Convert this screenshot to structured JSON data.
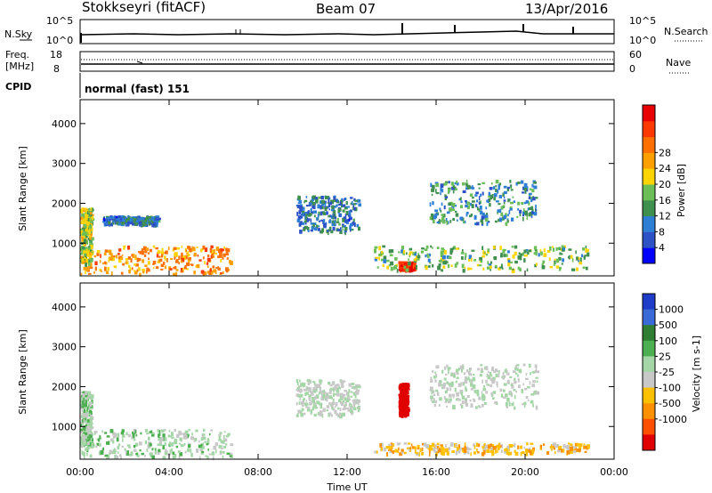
{
  "header": {
    "station": "Stokkseyri (fitACF)",
    "beam": "Beam 07",
    "date": "13/Apr/2016"
  },
  "strip_labels": {
    "nsky": "N.Sky",
    "nsearch": "N.Search",
    "noise_tick_top": "10^5",
    "noise_tick_bottom": "10^0",
    "freq_line1": "Freq.",
    "freq_line2": "[MHz]",
    "freq_ticks": [
      "18",
      "8"
    ],
    "nave": "Nave",
    "nave_ticks": [
      "60",
      "0"
    ],
    "cpid": "CPID",
    "cpid_value": "normal (fast) 151"
  },
  "axes": {
    "xlabel": "Time UT",
    "ylabel": "Slant Range [km]",
    "x_ticks": [
      "00:00",
      "04:00",
      "08:00",
      "12:00",
      "16:00",
      "20:00",
      "00:00"
    ],
    "y_ticks": [
      "1000",
      "2000",
      "3000",
      "4000"
    ]
  },
  "colorbars": {
    "power": {
      "label": "Power [dB]",
      "ticks": [
        "4",
        "8",
        "12",
        "16",
        "20",
        "24",
        "28"
      ],
      "colors": [
        "#0000ff",
        "#2d52c6",
        "#2e7fd4",
        "#3f8f4f",
        "#6cbf58",
        "#ffd400",
        "#ffa000",
        "#ff7000",
        "#ff3800",
        "#e80000"
      ]
    },
    "velocity": {
      "label": "Velocity [m s-1]",
      "ticks": [
        "1000",
        "500",
        "100",
        "25",
        "-25",
        "-100",
        "-500",
        "-1000"
      ],
      "colors": [
        "#1e3cc8",
        "#3a6ad8",
        "#2e7d32",
        "#4caf50",
        "#a5d6a7",
        "#c8c8c8",
        "#ffc000",
        "#ff9000",
        "#ff5000",
        "#e00000"
      ]
    }
  },
  "chart_data": {
    "type": "heatmap",
    "title": "Stokkseyri (fitACF)",
    "subtitle": "Beam 07",
    "xlabel": "Time UT",
    "ylabel": "Slant Range [km]",
    "xlim": [
      "00:00",
      "24:00"
    ],
    "ylim": [
      180,
      4600
    ],
    "panels": [
      {
        "name": "Power [dB]",
        "colorbar_range": [
          0,
          32
        ],
        "regions": [
          {
            "t0": 0.0,
            "t1": 6.8,
            "r0": 250,
            "r1": 950,
            "value": 22
          },
          {
            "t0": 0.0,
            "t1": 0.5,
            "r0": 500,
            "r1": 1900,
            "value": 16
          },
          {
            "t0": 1.0,
            "t1": 3.5,
            "r0": 1500,
            "r1": 1700,
            "value": 8
          },
          {
            "t0": 9.7,
            "t1": 12.5,
            "r0": 1300,
            "r1": 2200,
            "value": 8
          },
          {
            "t0": 14.3,
            "t1": 15.0,
            "r0": 350,
            "r1": 550,
            "value": 28
          },
          {
            "t0": 13.2,
            "t1": 22.8,
            "r0": 350,
            "r1": 950,
            "value": 14
          },
          {
            "t0": 15.7,
            "t1": 20.5,
            "r0": 1500,
            "r1": 2600,
            "value": 10
          }
        ]
      },
      {
        "name": "Velocity [m s-1]",
        "colorbar_range": [
          -1000,
          1000
        ],
        "regions": [
          {
            "t0": 0.0,
            "t1": 6.8,
            "r0": 250,
            "r1": 950,
            "value": 100
          },
          {
            "t0": 0.0,
            "t1": 0.5,
            "r0": 500,
            "r1": 1900,
            "value": 100
          },
          {
            "t0": 9.7,
            "t1": 12.5,
            "r0": 1300,
            "r1": 2200,
            "value": 0
          },
          {
            "t0": 14.3,
            "t1": 14.7,
            "r0": 1300,
            "r1": 2100,
            "value": -1000
          },
          {
            "t0": 13.2,
            "t1": 22.8,
            "r0": 350,
            "r1": 600,
            "value": -300
          },
          {
            "t0": 15.7,
            "t1": 20.5,
            "r0": 1500,
            "r1": 2600,
            "value": 0
          }
        ]
      }
    ]
  }
}
